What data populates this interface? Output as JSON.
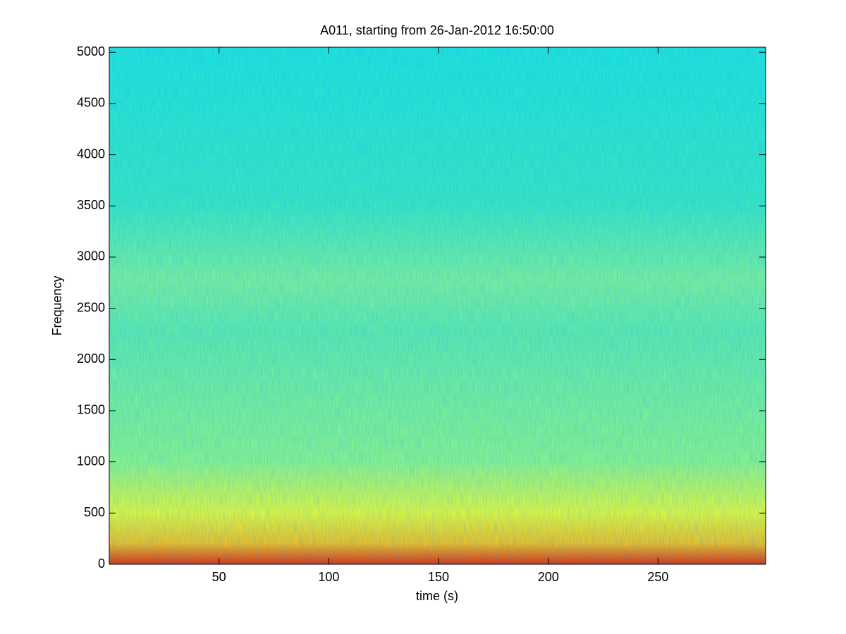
{
  "chart_data": {
    "type": "spectrogram",
    "title": "A011, starting from 26-Jan-2012 16:50:00",
    "xlabel": "time (s)",
    "ylabel": "Frequency",
    "xlim": [
      0,
      299
    ],
    "xticks": [
      50,
      100,
      150,
      200,
      250
    ],
    "ylim": [
      0,
      5050
    ],
    "yticks": [
      0,
      500,
      1000,
      1500,
      2000,
      2500,
      3000,
      3500,
      4000,
      4500,
      5000
    ],
    "colormap": "jet"
  }
}
